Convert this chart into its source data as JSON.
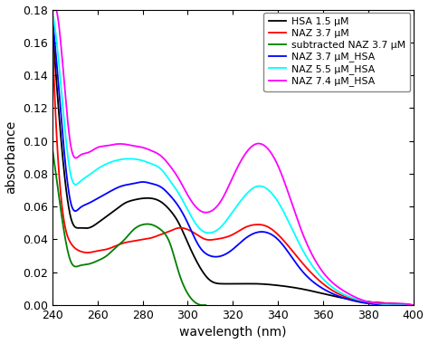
{
  "title": "",
  "xlabel": "wavelength (nm)",
  "ylabel": "absorbance",
  "xlim": [
    240,
    400
  ],
  "ylim": [
    0,
    0.18
  ],
  "xticks": [
    240,
    260,
    280,
    300,
    320,
    340,
    360,
    380,
    400
  ],
  "yticks": [
    0,
    0.02,
    0.04,
    0.06,
    0.08,
    0.1,
    0.12,
    0.14,
    0.16,
    0.18
  ],
  "legend_entries": [
    "HSA 1.5 μM",
    "NAZ 3.7 μM",
    "subtracted NAZ 3.7 μM",
    "NAZ 3.7 μM_HSA",
    "NAZ 5.5 μM_HSA",
    "NAZ 7.4 μM_HSA"
  ],
  "colors": [
    "black",
    "red",
    "green",
    "blue",
    "cyan",
    "magenta"
  ],
  "curves": {
    "HSA": {
      "x": [
        240,
        244,
        248,
        252,
        256,
        260,
        264,
        268,
        272,
        276,
        280,
        284,
        288,
        292,
        296,
        300,
        305,
        310,
        315,
        320,
        325,
        330,
        340,
        350,
        360,
        370,
        380,
        390,
        400
      ],
      "y": [
        0.17,
        0.098,
        0.054,
        0.047,
        0.047,
        0.05,
        0.054,
        0.058,
        0.062,
        0.064,
        0.065,
        0.065,
        0.063,
        0.058,
        0.05,
        0.038,
        0.024,
        0.015,
        0.013,
        0.013,
        0.013,
        0.013,
        0.012,
        0.01,
        0.007,
        0.004,
        0.002,
        0.001,
        0.0
      ]
    },
    "NAZ": {
      "x": [
        240,
        244,
        248,
        252,
        256,
        260,
        264,
        268,
        272,
        276,
        280,
        284,
        288,
        292,
        296,
        300,
        304,
        308,
        312,
        316,
        320,
        325,
        330,
        335,
        340,
        350,
        360,
        370,
        380,
        390,
        400
      ],
      "y": [
        0.163,
        0.063,
        0.038,
        0.033,
        0.032,
        0.033,
        0.034,
        0.036,
        0.038,
        0.039,
        0.04,
        0.041,
        0.043,
        0.045,
        0.047,
        0.046,
        0.043,
        0.04,
        0.04,
        0.041,
        0.043,
        0.047,
        0.049,
        0.048,
        0.043,
        0.027,
        0.013,
        0.005,
        0.002,
        0.001,
        0.0
      ]
    },
    "subtracted": {
      "x": [
        240,
        244,
        248,
        252,
        256,
        260,
        264,
        268,
        272,
        276,
        280,
        284,
        288,
        292,
        296,
        300,
        304,
        308
      ],
      "y": [
        0.095,
        0.055,
        0.027,
        0.024,
        0.025,
        0.027,
        0.03,
        0.035,
        0.04,
        0.046,
        0.049,
        0.049,
        0.046,
        0.038,
        0.02,
        0.007,
        0.001,
        0.0
      ]
    },
    "NAZ37_HSA": {
      "x": [
        240,
        244,
        248,
        252,
        256,
        260,
        264,
        268,
        272,
        276,
        280,
        284,
        288,
        292,
        296,
        300,
        305,
        310,
        315,
        320,
        325,
        330,
        340,
        350,
        360,
        370,
        380,
        390,
        400
      ],
      "y": [
        0.175,
        0.112,
        0.063,
        0.059,
        0.062,
        0.065,
        0.068,
        0.071,
        0.073,
        0.074,
        0.075,
        0.074,
        0.072,
        0.067,
        0.06,
        0.05,
        0.036,
        0.03,
        0.03,
        0.034,
        0.04,
        0.044,
        0.04,
        0.022,
        0.01,
        0.004,
        0.001,
        0.0,
        0.0
      ]
    },
    "NAZ55_HSA": {
      "x": [
        240,
        244,
        248,
        252,
        256,
        260,
        264,
        268,
        272,
        276,
        280,
        284,
        288,
        292,
        296,
        300,
        305,
        310,
        315,
        320,
        325,
        330,
        340,
        350,
        360,
        370,
        380,
        390,
        400
      ],
      "y": [
        0.178,
        0.13,
        0.08,
        0.075,
        0.079,
        0.083,
        0.086,
        0.088,
        0.089,
        0.089,
        0.088,
        0.086,
        0.083,
        0.076,
        0.068,
        0.058,
        0.047,
        0.044,
        0.048,
        0.057,
        0.066,
        0.072,
        0.063,
        0.036,
        0.016,
        0.006,
        0.002,
        0.0,
        0.0
      ]
    },
    "NAZ74_HSA": {
      "x": [
        240,
        244,
        248,
        252,
        256,
        260,
        264,
        268,
        272,
        276,
        280,
        284,
        288,
        292,
        296,
        300,
        305,
        310,
        315,
        320,
        325,
        330,
        340,
        350,
        360,
        370,
        380,
        390,
        400
      ],
      "y": [
        0.178,
        0.155,
        0.098,
        0.091,
        0.093,
        0.096,
        0.097,
        0.098,
        0.098,
        0.097,
        0.096,
        0.094,
        0.091,
        0.085,
        0.077,
        0.067,
        0.058,
        0.057,
        0.064,
        0.078,
        0.091,
        0.098,
        0.085,
        0.047,
        0.02,
        0.008,
        0.002,
        0.001,
        0.0
      ]
    }
  },
  "figsize": [
    4.74,
    3.8
  ],
  "dpi": 100
}
